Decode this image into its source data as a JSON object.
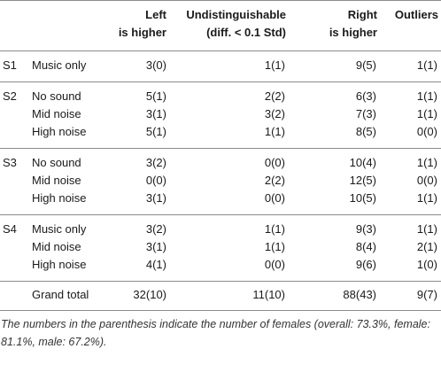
{
  "headers": {
    "left": [
      "Left",
      "is higher"
    ],
    "undistinguishable": [
      "Undistinguishable",
      "(diff. < 0.1 Std)"
    ],
    "right": [
      "Right",
      "is higher"
    ],
    "outliers": "Outliers"
  },
  "groups": [
    {
      "section": "S1",
      "rows": [
        {
          "condition": "Music only",
          "left": "3(0)",
          "undistinguishable": "1(1)",
          "right": "9(5)",
          "outliers": "1(1)"
        }
      ]
    },
    {
      "section": "S2",
      "rows": [
        {
          "condition": "No sound",
          "left": "5(1)",
          "undistinguishable": "2(2)",
          "right": "6(3)",
          "outliers": "1(1)"
        },
        {
          "condition": "Mid noise",
          "left": "3(1)",
          "undistinguishable": "3(2)",
          "right": "7(3)",
          "outliers": "1(1)"
        },
        {
          "condition": "High noise",
          "left": "5(1)",
          "undistinguishable": "1(1)",
          "right": "8(5)",
          "outliers": "0(0)"
        }
      ]
    },
    {
      "section": "S3",
      "rows": [
        {
          "condition": "No sound",
          "left": "3(2)",
          "undistinguishable": "0(0)",
          "right": "10(4)",
          "outliers": "1(1)"
        },
        {
          "condition": "Mid noise",
          "left": "0(0)",
          "undistinguishable": "2(2)",
          "right": "12(5)",
          "outliers": "0(0)"
        },
        {
          "condition": "High noise",
          "left": "3(1)",
          "undistinguishable": "0(0)",
          "right": "10(5)",
          "outliers": "1(1)"
        }
      ]
    },
    {
      "section": "S4",
      "rows": [
        {
          "condition": "Music only",
          "left": "3(2)",
          "undistinguishable": "1(1)",
          "right": "9(3)",
          "outliers": "1(1)"
        },
        {
          "condition": "Mid noise",
          "left": "3(1)",
          "undistinguishable": "1(1)",
          "right": "8(4)",
          "outliers": "2(1)"
        },
        {
          "condition": "High noise",
          "left": "4(1)",
          "undistinguishable": "0(0)",
          "right": "9(6)",
          "outliers": "1(0)"
        }
      ]
    }
  ],
  "total": {
    "label": "Grand total",
    "left": "32(10)",
    "undistinguishable": "11(10)",
    "right": "88(43)",
    "outliers": "9(7)"
  },
  "footnote": "The numbers in the parenthesis indicate the number of females (overall: 73.3%, female: 81.1%, male: 67.2%)."
}
